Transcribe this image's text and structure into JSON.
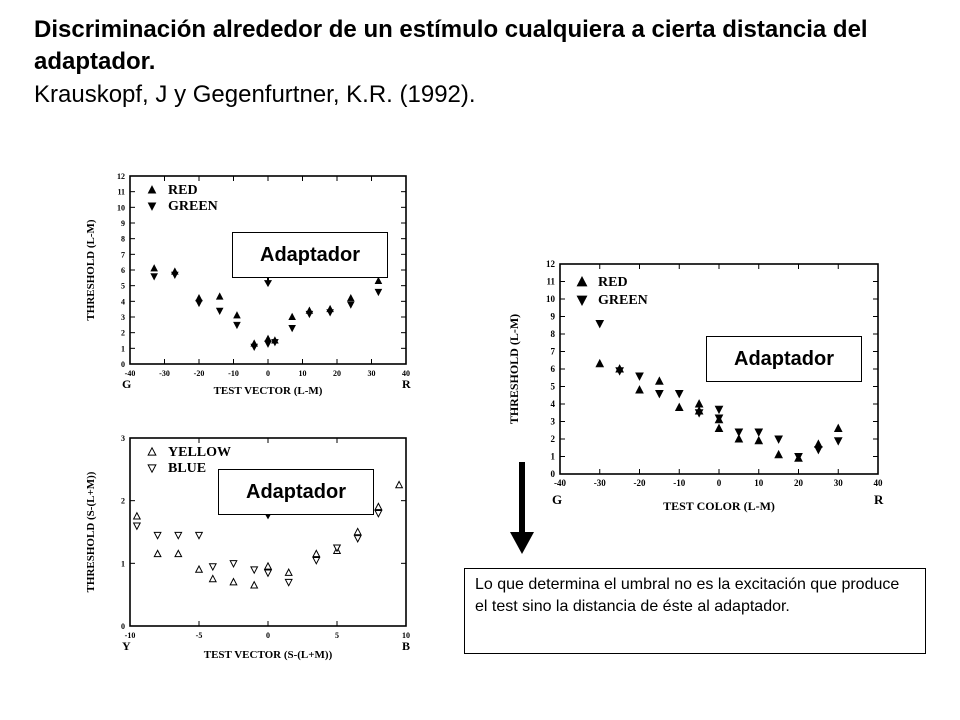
{
  "title": {
    "line1": "Discriminación alrededor de un estímulo cualquiera a cierta distancia del adaptador.",
    "line2": "Krauskopf, J y Gegenfurtner, K.R. (1992)."
  },
  "callouts": {
    "top_left": "Adaptador",
    "bottom_left": "Adaptador",
    "right": "Adaptador"
  },
  "note": "Lo que determina el umbral no es la excitación que produce el test sino la distancia de éste al adaptador.",
  "chart_data": [
    {
      "type": "scatter",
      "xlabel": "TEST VECTOR (L-M)",
      "ylabel": "THRESHOLD (L-M)",
      "x_end_labels": [
        "G",
        "R"
      ],
      "xlim": [
        -40,
        40
      ],
      "ylim": [
        0,
        12
      ],
      "xticks": [
        -40,
        -30,
        -20,
        -10,
        0,
        10,
        20,
        30,
        40
      ],
      "yticks": [
        0,
        1,
        2,
        3,
        4,
        5,
        6,
        7,
        8,
        9,
        10,
        11,
        12
      ],
      "legend_position": "top-left",
      "series": [
        {
          "name": "RED",
          "marker": "triangle-up",
          "x": [
            -33,
            -27,
            -20,
            -14,
            -9,
            -4,
            0,
            2,
            7,
            12,
            18,
            24,
            32
          ],
          "y": [
            6.1,
            5.9,
            4.2,
            4.3,
            3.1,
            1.3,
            1.6,
            1.5,
            3.0,
            3.4,
            3.5,
            4.2,
            5.3
          ]
        },
        {
          "name": "GREEN",
          "marker": "triangle-down",
          "x": [
            -33,
            -27,
            -20,
            -14,
            -9,
            -4,
            0,
            2,
            7,
            12,
            18,
            24,
            32
          ],
          "y": [
            5.6,
            5.7,
            3.9,
            3.4,
            2.5,
            1.1,
            1.3,
            1.4,
            2.3,
            3.2,
            3.3,
            3.8,
            4.6
          ]
        }
      ],
      "arrow_x": 0,
      "arrow_y": 5.1
    },
    {
      "type": "scatter",
      "xlabel": "TEST VECTOR (S-(L+M))",
      "ylabel": "THRESHOLD (S-(L+M))",
      "x_end_labels": [
        "Y",
        "B"
      ],
      "xlim": [
        -10,
        10
      ],
      "ylim": [
        0,
        3
      ],
      "xticks": [
        -10,
        -5,
        0,
        5,
        10
      ],
      "yticks": [
        0,
        1,
        2,
        3
      ],
      "legend_position": "top-left",
      "series": [
        {
          "name": "YELLOW",
          "marker": "triangle-up-open",
          "x": [
            -9.5,
            -8,
            -6.5,
            -5,
            -4,
            -2.5,
            -1,
            0,
            1.5,
            3.5,
            5,
            6.5,
            8,
            9.5
          ],
          "y": [
            1.75,
            1.15,
            1.15,
            0.9,
            0.75,
            0.7,
            0.65,
            0.95,
            0.85,
            1.15,
            1.2,
            1.5,
            1.9,
            2.25
          ],
          "last_y": 2.25
        },
        {
          "name": "BLUE",
          "marker": "triangle-down-open",
          "x": [
            -9.5,
            -8,
            -6.5,
            -5,
            -4,
            -2.5,
            -1,
            0,
            1.5,
            3.5,
            5,
            6.5,
            8
          ],
          "y": [
            1.6,
            1.45,
            1.45,
            1.45,
            0.95,
            1.0,
            0.9,
            0.85,
            0.7,
            1.05,
            1.25,
            1.4,
            1.8
          ]
        }
      ],
      "arrow_x": 0,
      "arrow_y": 1.75
    },
    {
      "type": "scatter",
      "xlabel": "TEST COLOR (L-M)",
      "ylabel": "THRESHOLD (L-M)",
      "x_end_labels": [
        "G",
        "R"
      ],
      "xlim": [
        -40,
        40
      ],
      "ylim": [
        0,
        12
      ],
      "xticks": [
        -40,
        -30,
        -20,
        -10,
        0,
        10,
        20,
        30,
        40
      ],
      "yticks": [
        0,
        1,
        2,
        3,
        4,
        5,
        6,
        7,
        8,
        9,
        10,
        11,
        12
      ],
      "legend_position": "top-left",
      "series": [
        {
          "name": "RED",
          "marker": "triangle-up-filled",
          "x": [
            -30,
            -25,
            -20,
            -15,
            -10,
            -5,
            0,
            5,
            10,
            15,
            20,
            25,
            30
          ],
          "y": [
            6.3,
            6.0,
            4.8,
            5.3,
            3.8,
            4.0,
            3.1,
            2.0,
            1.9,
            1.1,
            0.9,
            1.7,
            2.6
          ],
          "extra_points": [
            [
              -5,
              3.6
            ],
            [
              0,
              2.6
            ]
          ]
        },
        {
          "name": "GREEN",
          "marker": "triangle-down-filled",
          "x": [
            -30,
            -25,
            -20,
            -15,
            -10,
            -5,
            0,
            5,
            10,
            15,
            20,
            25,
            30
          ],
          "y": [
            8.6,
            5.9,
            5.6,
            4.6,
            4.6,
            3.5,
            3.7,
            2.4,
            2.4,
            2.0,
            1.0,
            1.4,
            1.9
          ],
          "extra_points": [
            [
              0,
              3.2
            ]
          ]
        }
      ],
      "arrow_x": 21,
      "arrow_y": 5.5
    }
  ]
}
